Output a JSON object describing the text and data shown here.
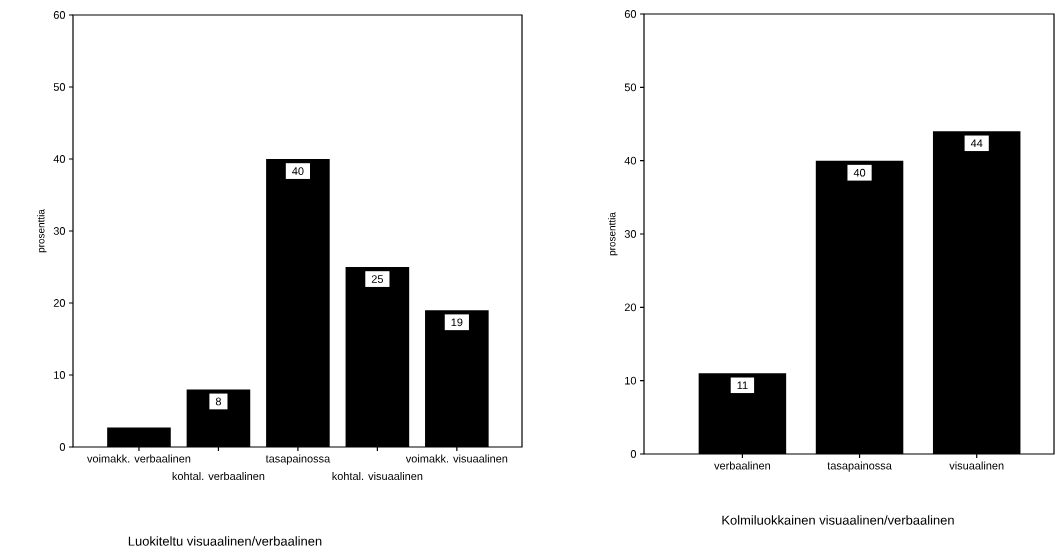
{
  "chart_data": [
    {
      "type": "bar",
      "xlabel": "Luokiteltu visuaalinen/verbaalinen",
      "ylabel": "prosenttia",
      "categories": [
        "voimakk. verbaalinen",
        "kohtal. verbaalinen",
        "tasapainossa",
        "kohtal. visuaalinen",
        "voimakk. visuaalinen"
      ],
      "values": [
        2.7,
        8,
        40,
        25,
        19
      ],
      "value_labels": [
        null,
        "8",
        "40",
        "25",
        "19"
      ],
      "color": "#000000",
      "ylim": [
        0,
        60
      ],
      "yticks": [
        0,
        10,
        20,
        30,
        40,
        50,
        60
      ]
    },
    {
      "type": "bar",
      "xlabel": "Kolmiluokkainen visuaalinen/verbaalinen",
      "ylabel": "prosenttia",
      "categories": [
        "verbaalinen",
        "tasapainossa",
        "visuaalinen"
      ],
      "values": [
        11,
        40,
        44
      ],
      "data_labels": true,
      "color": "#000000",
      "ylim": [
        0,
        60
      ],
      "yticks": [
        0,
        10,
        20,
        30,
        40,
        50,
        60
      ]
    }
  ]
}
